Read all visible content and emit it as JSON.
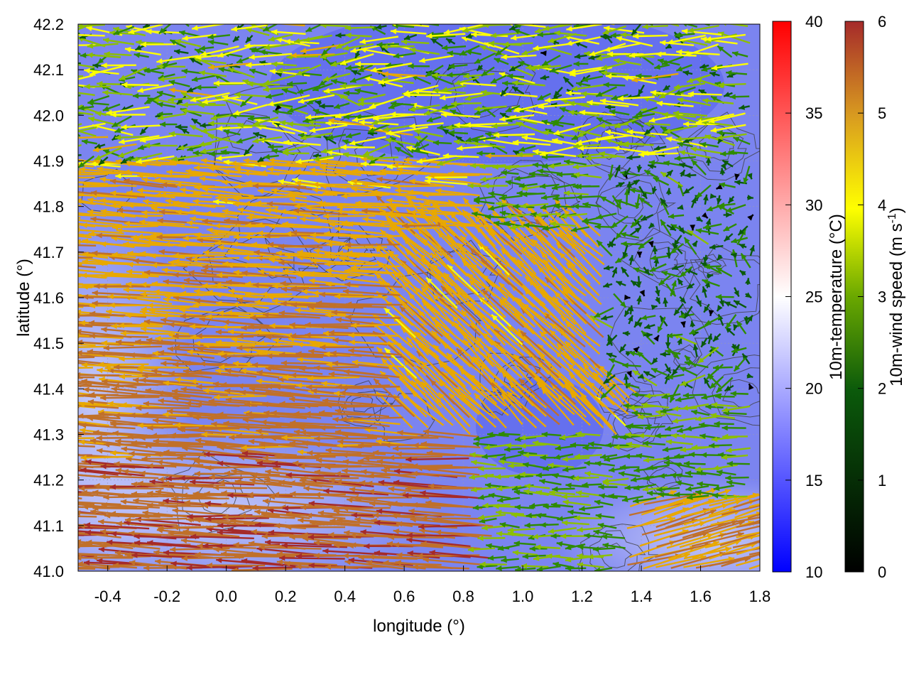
{
  "chart_data": {
    "type": "vector-field",
    "xlabel": "longitude (°)",
    "ylabel": "latitude (°)",
    "xlim": [
      -0.5,
      1.8
    ],
    "ylim": [
      41.0,
      42.2
    ],
    "x_ticks": [
      "-0.4",
      "-0.2",
      "0.0",
      "0.2",
      "0.4",
      "0.6",
      "0.8",
      "1.0",
      "1.2",
      "1.4",
      "1.6",
      "1.8"
    ],
    "x_tick_values": [
      -0.4,
      -0.2,
      0.0,
      0.2,
      0.4,
      0.6,
      0.8,
      1.0,
      1.2,
      1.4,
      1.6,
      1.8
    ],
    "y_ticks": [
      "41.0",
      "41.1",
      "41.2",
      "41.3",
      "41.4",
      "41.5",
      "41.6",
      "41.7",
      "41.8",
      "41.9",
      "42.0",
      "42.1",
      "42.2"
    ],
    "y_tick_values": [
      41.0,
      41.1,
      41.2,
      41.3,
      41.4,
      41.5,
      41.6,
      41.7,
      41.8,
      41.9,
      42.0,
      42.1,
      42.2
    ],
    "grid": true,
    "background_field": {
      "name": "10m-temperature",
      "label": "10m-temperature (°C)",
      "range": [
        10,
        40
      ],
      "ticks": [
        "10",
        "15",
        "20",
        "25",
        "30",
        "35",
        "40"
      ],
      "tick_values": [
        10,
        15,
        20,
        25,
        30,
        35,
        40
      ],
      "colors": [
        "#0000ff",
        "#ffffff",
        "#ff0000"
      ],
      "approx_values": {
        "west_coast_band": 20,
        "interior": 16,
        "southeast_coast": 21
      }
    },
    "vector_field": {
      "name": "10m-wind speed",
      "label": "10m-wind speed (m s-1)",
      "label_main": "10m-wind speed (m s",
      "label_sup": "-1",
      "label_tail": ")",
      "range": [
        0,
        6
      ],
      "ticks": [
        "0",
        "1",
        "2",
        "3",
        "4",
        "5",
        "6"
      ],
      "tick_values": [
        0,
        1,
        2,
        3,
        4,
        5,
        6
      ],
      "colors": [
        "#000000",
        "#0b5a0b",
        "#2e8b00",
        "#8cbf00",
        "#ffff00",
        "#e8a800",
        "#c0702a",
        "#a52a2a"
      ],
      "regimes": [
        {
          "region": "west and southwest",
          "direction": "westward",
          "speed": 5.5
        },
        {
          "region": "center",
          "direction": "northwest",
          "speed": 5.0
        },
        {
          "region": "north and east",
          "direction": "variable",
          "speed": 2.0
        },
        {
          "region": "southeast corner",
          "direction": "northeast",
          "speed": 4.5
        }
      ]
    },
    "contours": {
      "color": "#404040",
      "description": "topography isolines"
    }
  },
  "colors": {
    "temp_low": "#0000ff",
    "temp_mid": "#ffffff",
    "temp_high": "#ff0000",
    "contour": "#404040",
    "grid": "#9a9ab4"
  }
}
